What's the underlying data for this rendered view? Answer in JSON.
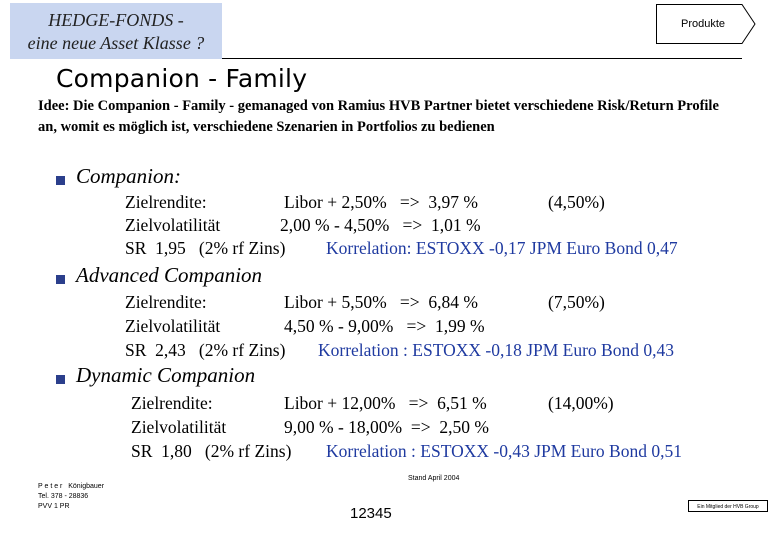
{
  "header": {
    "title_line1": "HEDGE-FONDS -",
    "title_line2": "eine neue Asset Klasse ?",
    "nav_label": "Produkte"
  },
  "heading": "Companion - Family",
  "intro": "Idee: Die Companion - Family - gemanaged von Ramius HVB Partner bietet verschiedene Risk/Return Profile an, womit es möglich ist, verschiedene Szenarien in Portfolios zu bedienen",
  "sections": [
    {
      "title": "Companion:",
      "row1_label": "Zielrendite:",
      "row1_value": "Libor + 2,50%   =>  3,97 %",
      "row1_extra": "(4,50%)",
      "row2_label": "Zielvolatilität",
      "row2_value": "2,00 % - 4,50%   =>  1,01 %",
      "row3_sr": "SR  1,95   (2% rf Zins)",
      "row3_corr": "Korrelation: ESTOXX -0,17 JPM Euro Bond 0,47"
    },
    {
      "title": "Advanced Companion",
      "row1_label": "Zielrendite:",
      "row1_value": "Libor + 5,50%   =>  6,84 %",
      "row1_extra": "(7,50%)",
      "row2_label": "Zielvolatilität",
      "row2_value": "4,50 % - 9,00%   =>  1,99 %",
      "row3_sr": "SR  2,43   (2% rf Zins)",
      "row3_corr": "Korrelation : ESTOXX -0,18 JPM Euro Bond 0,43"
    },
    {
      "title": "Dynamic Companion",
      "row1_label": "Zielrendite:",
      "row1_value": "Libor + 12,00%   =>  6,51 %",
      "row1_extra": "(14,00%)",
      "row2_label": "Zielvolatilität",
      "row2_value": "9,00 % - 18,00%  =>  2,50 %",
      "row3_sr": "SR  1,80   (2% rf Zins)",
      "row3_corr": "Korrelation : ESTOXX -0,43 JPM Euro Bond 0,51"
    }
  ],
  "footer": {
    "author": "P e t e r   Königbauer",
    "phone": "Tel. 378 - 28836",
    "dept": "PVV 1 PR",
    "stand": "Stand April 2004",
    "page_number": "12345",
    "member_note": "Ein Mitglied der HVB Group"
  },
  "colors": {
    "title_box_bg": "#c9d6f0",
    "bullet": "#2b3f8c",
    "correlation_text": "#1f3aa0"
  }
}
